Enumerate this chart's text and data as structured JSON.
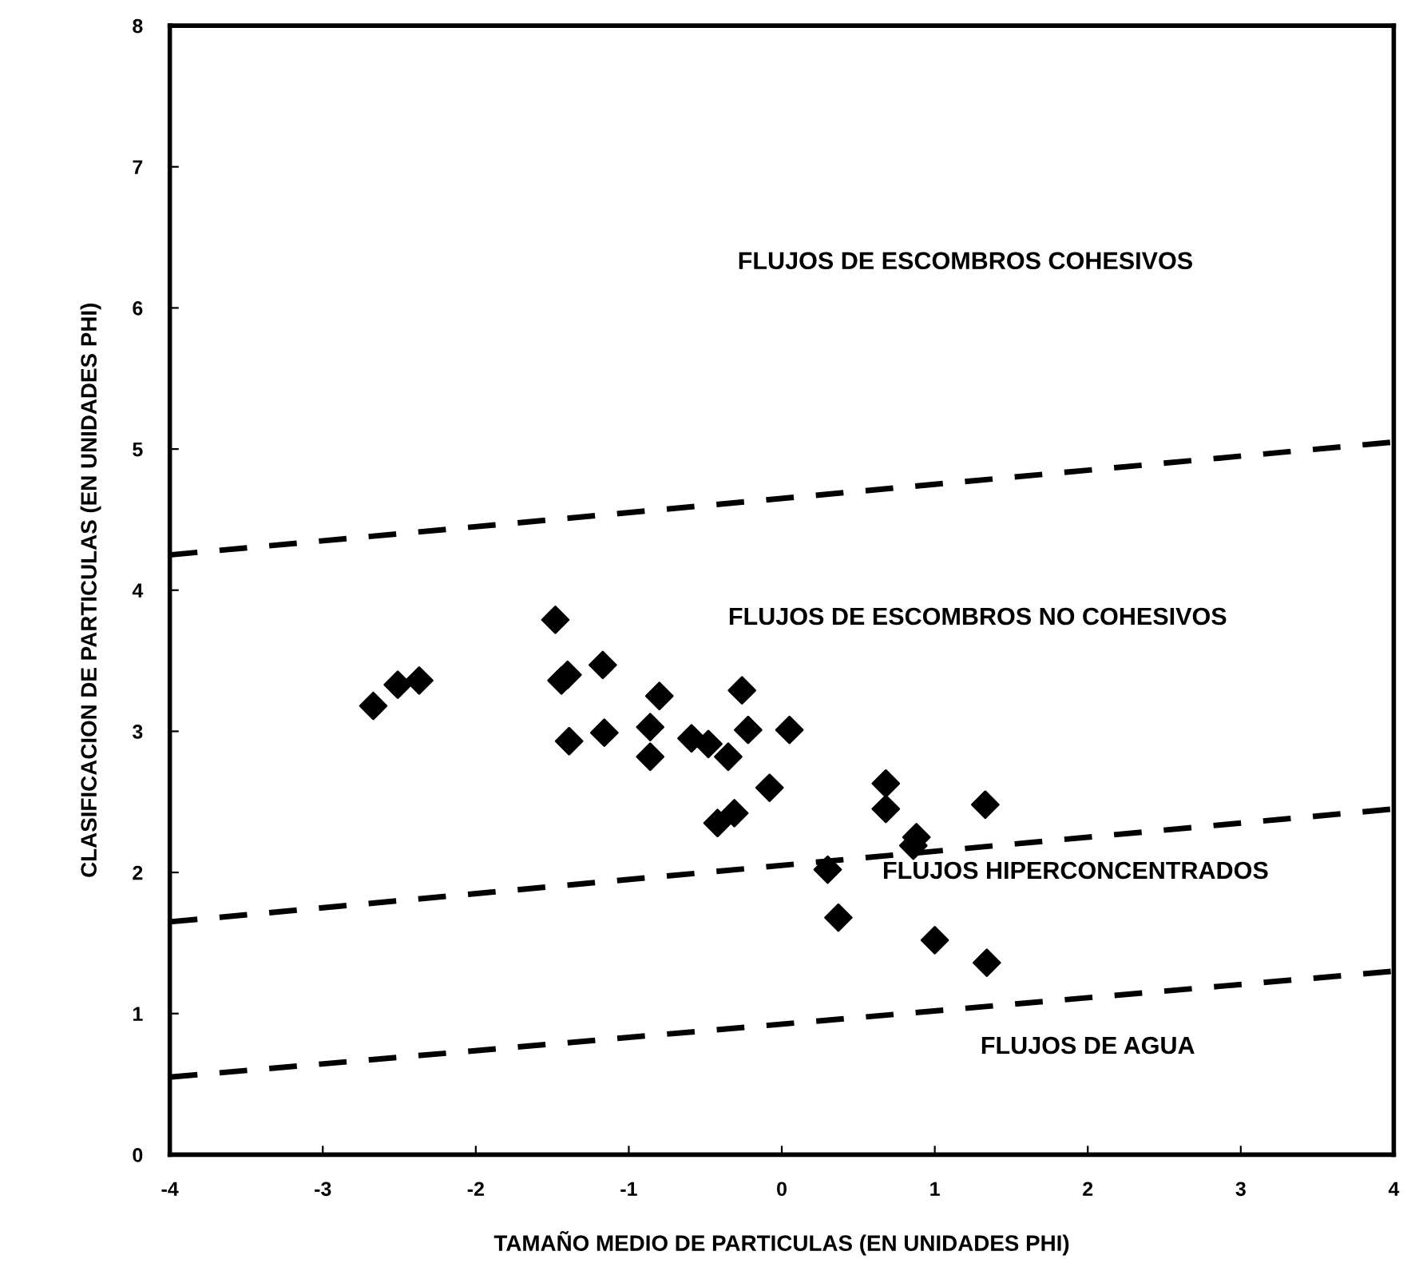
{
  "chart_data": {
    "type": "scatter",
    "xlabel": "TAMAÑO MEDIO DE PARTICULAS (EN UNIDADES PHI)",
    "ylabel": "CLASIFICACION DE PARTICULAS (EN UNIDADES PHI)",
    "xlim": [
      -4,
      4
    ],
    "ylim": [
      0,
      8
    ],
    "xticks": [
      -4,
      -3,
      -2,
      -1,
      0,
      1,
      2,
      3,
      4
    ],
    "yticks": [
      0,
      1,
      2,
      3,
      4,
      5,
      6,
      7,
      8
    ],
    "grid": false,
    "legend": false,
    "series": [
      {
        "color": "#000000",
        "marker": "diamond",
        "x": [
          -2.67,
          -2.51,
          -2.37,
          -1.48,
          -1.44,
          -1.4,
          -1.39,
          -1.17,
          -1.16,
          -0.8,
          -0.86,
          -0.86,
          -0.59,
          -0.48,
          -0.35,
          -0.42,
          -0.31,
          -0.26,
          -0.22,
          -0.08,
          0.05,
          0.3,
          0.37,
          0.68,
          0.68,
          0.88,
          0.86,
          1.0,
          1.33,
          1.34
        ],
        "values": [
          3.18,
          3.33,
          3.36,
          3.79,
          3.36,
          3.4,
          2.93,
          3.47,
          2.99,
          3.25,
          3.03,
          2.82,
          2.95,
          2.91,
          2.82,
          2.35,
          2.42,
          3.29,
          3.01,
          2.6,
          3.01,
          2.02,
          1.68,
          2.63,
          2.45,
          2.25,
          2.19,
          1.52,
          2.48,
          1.36
        ]
      },
      {
        "type": "line",
        "color": "#000000",
        "line_style": "dashed",
        "marker": "none",
        "x": [
          -4,
          4
        ],
        "values": [
          4.25,
          5.05
        ]
      },
      {
        "type": "line",
        "color": "#000000",
        "line_style": "dashed",
        "marker": "none",
        "x": [
          -4,
          4
        ],
        "values": [
          1.65,
          2.45
        ]
      },
      {
        "type": "line",
        "color": "#000000",
        "line_style": "dashed",
        "marker": "none",
        "x": [
          -4,
          4
        ],
        "values": [
          0.55,
          1.3
        ]
      }
    ],
    "annotations": [
      "FLUJOS DE ESCOMBROS COHESIVOS",
      "FLUJOS DE ESCOMBROS NO COHESIVOS",
      "FLUJOS HIPERCONCENTRADOS",
      "FLUJOS DE AGUA"
    ]
  }
}
